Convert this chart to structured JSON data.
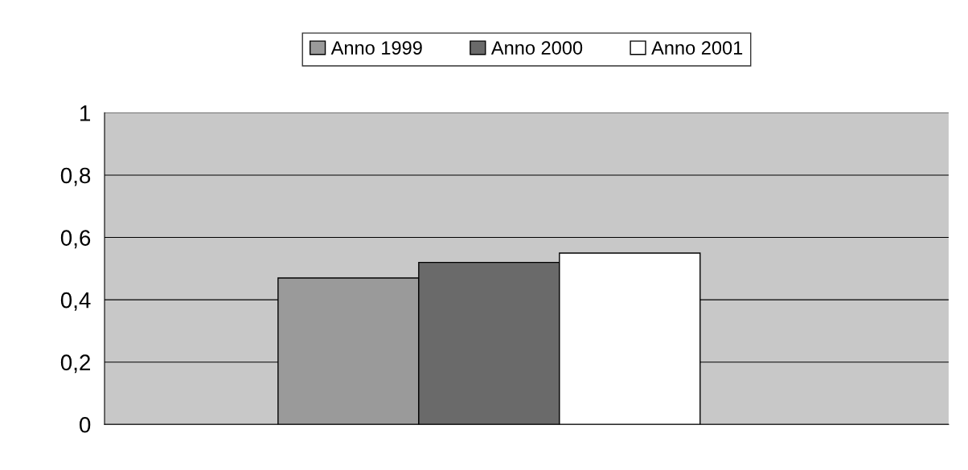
{
  "chart_data": {
    "type": "bar",
    "categories": [
      null
    ],
    "series": [
      {
        "name": "Anno 1999",
        "color": "#9a9a9a",
        "values": [
          0.47
        ]
      },
      {
        "name": "Anno 2000",
        "color": "#6a6a6a",
        "values": [
          0.52
        ]
      },
      {
        "name": "Anno 2001",
        "color": "#ffffff",
        "values": [
          0.55
        ]
      }
    ],
    "ylim": [
      0,
      1
    ],
    "yticks": [
      0,
      {
        "value": 0.2,
        "label": "0,2"
      },
      {
        "value": 0.4,
        "label": "0,4"
      },
      {
        "value": 0.6,
        "label": "0,6"
      },
      {
        "value": 0.8,
        "label": "0,8"
      },
      1
    ],
    "grid": "y",
    "legend": "top"
  }
}
